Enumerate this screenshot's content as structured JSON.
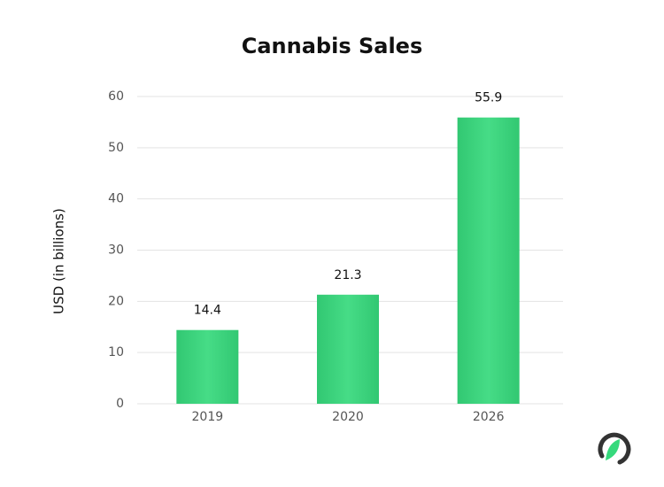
{
  "chart_data": {
    "type": "bar",
    "title": "Cannabis Sales",
    "y_label": "USD (in billions)",
    "categories": [
      "2019",
      "2020",
      "2026"
    ],
    "values": [
      14.4,
      21.3,
      55.9
    ],
    "color": "#36d97c",
    "ylim": [
      0,
      60
    ],
    "yticks": [
      0,
      10,
      20,
      30,
      40,
      50,
      60
    ],
    "grid": true
  }
}
